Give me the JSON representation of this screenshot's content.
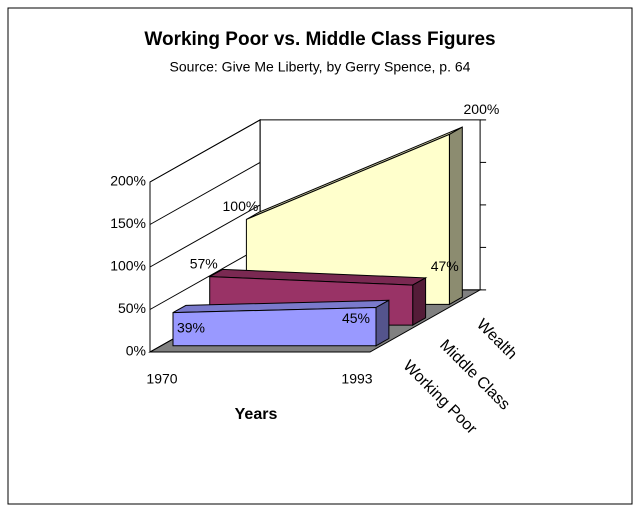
{
  "chart_data": {
    "type": "area3d",
    "title": "Working Poor vs. Middle Class Figures",
    "subtitle": "Source: Give Me Liberty, by Gerry Spence, p. 64",
    "x_label": "Years",
    "x": [
      "1970",
      "1993"
    ],
    "series": [
      {
        "name": "Working Poor",
        "color": "#9999ff",
        "values": [
          39,
          45
        ],
        "value_labels": [
          "39%",
          "45%"
        ]
      },
      {
        "name": "Middle Class",
        "color": "#993366",
        "values": [
          57,
          47
        ],
        "value_labels": [
          "57%",
          "47%"
        ]
      },
      {
        "name": "Wealth",
        "color": "#ffffcc",
        "values": [
          100,
          200
        ],
        "value_labels": [
          "100%",
          "200%"
        ]
      }
    ],
    "ylim": [
      0,
      200
    ],
    "yticks": [
      {
        "value": 0,
        "label": "0%"
      },
      {
        "value": 50,
        "label": "50%"
      },
      {
        "value": 100,
        "label": "100%"
      },
      {
        "value": 150,
        "label": "150%"
      },
      {
        "value": 200,
        "label": "200%"
      }
    ],
    "grid": true
  }
}
